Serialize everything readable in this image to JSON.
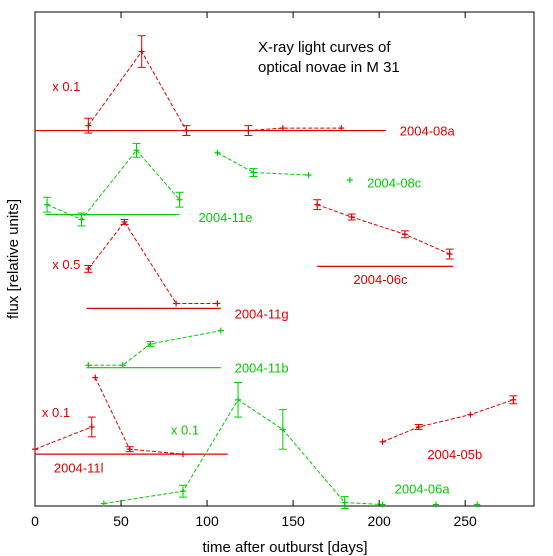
{
  "chart_data": {
    "type": "line",
    "title_lines": [
      "X-ray light curves of",
      "optical novae in M 31"
    ],
    "xlabel": "time after outburst [days]",
    "ylabel": "flux [relative units]",
    "xlim": [
      0,
      290
    ],
    "ylim": [
      0,
      100
    ],
    "xticks": [
      0,
      50,
      100,
      150,
      200,
      250
    ],
    "grid": false,
    "colors": {
      "red": "#e00000",
      "green": "#00cc00"
    },
    "series": [
      {
        "name": "2004-08a",
        "color": "red",
        "scale_note": "x 0.1",
        "baseline": {
          "x": [
            0,
            204
          ],
          "y": 76
        },
        "label_at": [
          212,
          76
        ],
        "scale_at": [
          10,
          85
        ],
        "points": [
          [
            31,
            77,
            1.5
          ],
          [
            62,
            92,
            3.2
          ],
          [
            88,
            76,
            1
          ],
          [
            124,
            76,
            1
          ],
          [
            144,
            76.5,
            0
          ],
          [
            178,
            76.5,
            0
          ]
        ],
        "segments": [
          [
            0,
            1,
            2
          ],
          [
            3,
            4,
            5
          ]
        ]
      },
      {
        "name": "2004-08c",
        "color": "green",
        "label_at": [
          193,
          65.5
        ],
        "points": [
          [
            106,
            71.5,
            0
          ],
          [
            127,
            67.5,
            0.8
          ],
          [
            159,
            67,
            0
          ],
          [
            183,
            66,
            0
          ]
        ],
        "segments": [
          [
            0,
            1,
            2
          ],
          [
            3
          ]
        ]
      },
      {
        "name": "2004-11e",
        "color": "green",
        "baseline": {
          "x": [
            6,
            84
          ],
          "y": 59
        },
        "label_at": [
          95,
          58.5
        ],
        "points": [
          [
            7,
            61,
            1.5
          ],
          [
            27,
            58,
            1.3
          ],
          [
            59,
            72,
            1.4
          ],
          [
            84,
            62,
            1.5
          ]
        ],
        "segments": [
          [
            0,
            1,
            2,
            3
          ]
        ]
      },
      {
        "name": "2004-06c",
        "color": "red",
        "baseline": {
          "x": [
            164,
            243
          ],
          "y": 48.5
        },
        "label_at": [
          185,
          46
        ],
        "points": [
          [
            164,
            61,
            1
          ],
          [
            184,
            58.5,
            0.6
          ],
          [
            215,
            55,
            0.7
          ],
          [
            241,
            51,
            1
          ]
        ],
        "segments": [
          [
            0,
            1,
            2,
            3
          ]
        ]
      },
      {
        "name": "2004-11g",
        "color": "red",
        "scale_note": "x 0.5",
        "baseline": {
          "x": [
            30,
            108
          ],
          "y": 40
        },
        "label_at": [
          116,
          39
        ],
        "scale_at": [
          10,
          49
        ],
        "points": [
          [
            31,
            48,
            0.7
          ],
          [
            52,
            57.5,
            0.5
          ],
          [
            82,
            41,
            0
          ],
          [
            106,
            41,
            0
          ]
        ],
        "segments": [
          [
            0,
            1,
            2,
            3
          ]
        ]
      },
      {
        "name": "2004-11b",
        "color": "green",
        "baseline": {
          "x": [
            30,
            108
          ],
          "y": 28
        },
        "label_at": [
          116,
          28
        ],
        "points": [
          [
            31,
            28.5,
            0
          ],
          [
            51,
            28.5,
            0
          ],
          [
            67,
            32.8,
            0.5
          ],
          [
            108,
            35.5,
            0
          ]
        ],
        "segments": [
          [
            0,
            1,
            2,
            3
          ]
        ]
      },
      {
        "name": "2004-11l",
        "color": "red",
        "scale_note": "x 0.1",
        "baseline": {
          "x": [
            0,
            112
          ],
          "y": 10.5
        },
        "label_at": [
          11,
          7.8
        ],
        "scale_at": [
          4,
          19
        ],
        "points": [
          [
            0,
            11.5,
            0
          ],
          [
            33,
            16,
            2
          ],
          [
            35,
            26,
            0
          ],
          [
            55,
            11.5,
            0.5
          ],
          [
            86,
            10.5,
            0
          ]
        ],
        "segments": [
          [
            0,
            1
          ],
          [
            2,
            3,
            4
          ]
        ]
      },
      {
        "name": "2004-06a",
        "color": "green",
        "scale_note": "x 0.1",
        "label_at": [
          209,
          3.5
        ],
        "scale_at": [
          79,
          15.5
        ],
        "points": [
          [
            40,
            0.5,
            0
          ],
          [
            86,
            3,
            1.2
          ],
          [
            118,
            21.5,
            3.5
          ],
          [
            144,
            15.5,
            4
          ],
          [
            180,
            0.7,
            1.2
          ],
          [
            202,
            0.3,
            0
          ],
          [
            233,
            0.3,
            0
          ],
          [
            257,
            0.3,
            0
          ]
        ],
        "segments": [
          [
            0,
            1,
            2,
            3,
            4,
            5
          ],
          [
            6
          ],
          [
            7
          ]
        ]
      },
      {
        "name": "2004-05b",
        "color": "red",
        "label_at": [
          228,
          10.5
        ],
        "points": [
          [
            202,
            13,
            0
          ],
          [
            223,
            16,
            0.5
          ],
          [
            253,
            18.5,
            0
          ],
          [
            278,
            21.5,
            0.8
          ]
        ],
        "segments": [
          [
            0,
            1,
            2,
            3
          ]
        ]
      }
    ]
  }
}
